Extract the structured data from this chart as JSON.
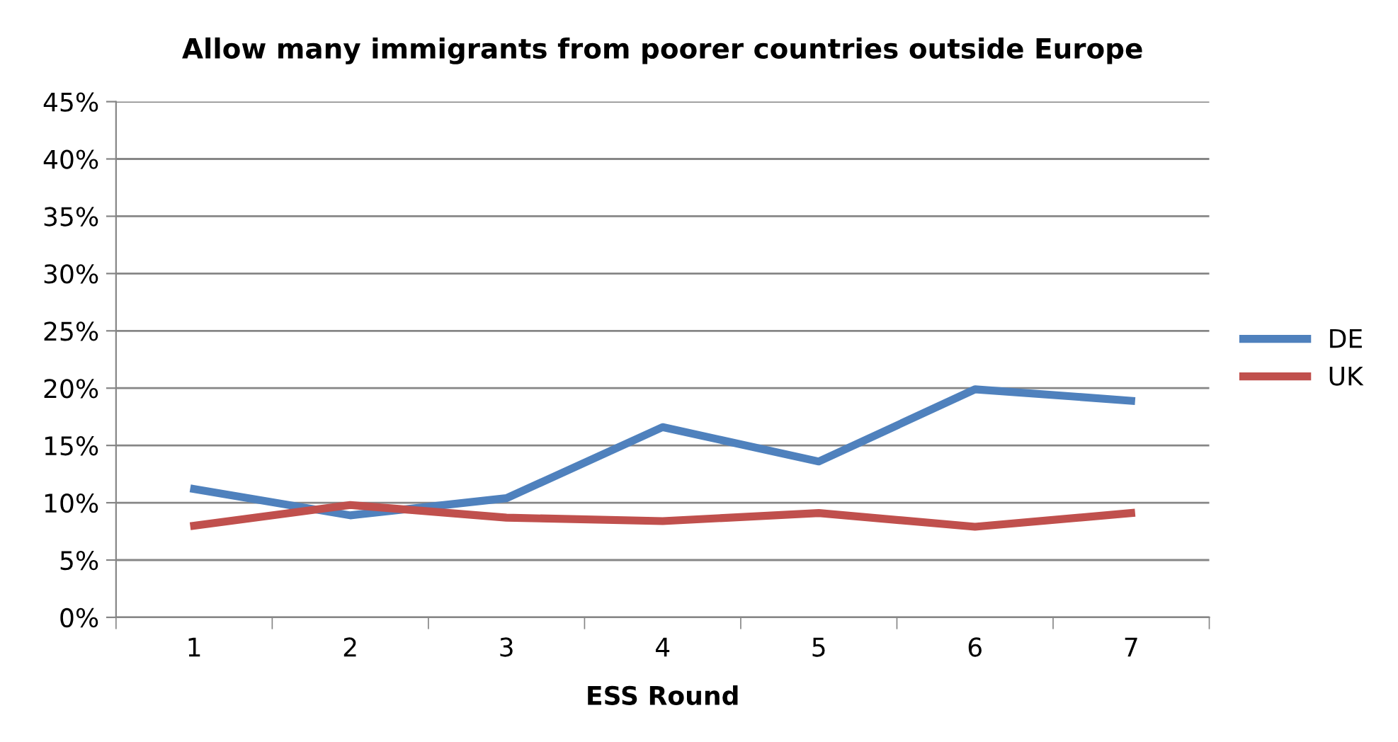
{
  "chart_data": {
    "type": "line",
    "title": "Allow many immigrants from poorer countries outside Europe",
    "xlabel": "ESS Round",
    "categories": [
      "1",
      "2",
      "3",
      "4",
      "5",
      "6",
      "7"
    ],
    "series": [
      {
        "name": "DE",
        "color": "#4f81bd",
        "values": [
          0.112,
          0.089,
          0.104,
          0.166,
          0.136,
          0.199,
          0.189
        ]
      },
      {
        "name": "UK",
        "color": "#c0504d",
        "values": [
          0.08,
          0.098,
          0.087,
          0.084,
          0.091,
          0.079,
          0.091
        ]
      }
    ],
    "ylim": [
      0,
      0.45
    ],
    "yticks": [
      {
        "value": 0,
        "label": "0%"
      },
      {
        "value": 0.05,
        "label": "5%"
      },
      {
        "value": 0.1,
        "label": "10%"
      },
      {
        "value": 0.15,
        "label": "15%"
      },
      {
        "value": 0.2,
        "label": "20%"
      },
      {
        "value": 0.25,
        "label": "25%"
      },
      {
        "value": 0.3,
        "label": "30%"
      },
      {
        "value": 0.35,
        "label": "35%"
      },
      {
        "value": 0.4,
        "label": "40%"
      },
      {
        "value": 0.45,
        "label": "45%"
      }
    ],
    "grid": "y",
    "legend": "right",
    "marker": "none",
    "line_style": "solid"
  }
}
